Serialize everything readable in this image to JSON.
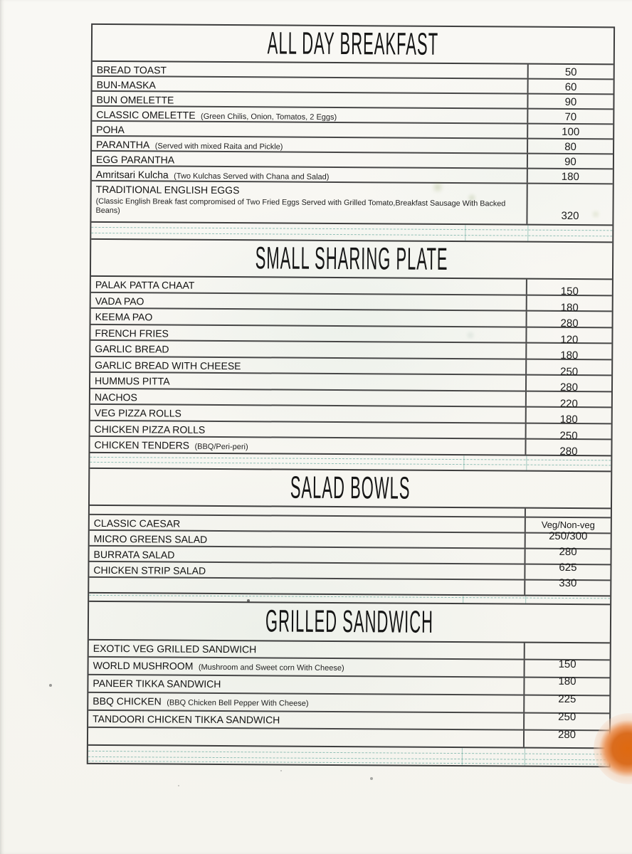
{
  "menu": {
    "sections": [
      {
        "title": "ALL DAY BREAKFAST",
        "items": [
          {
            "name": "BREAD TOAST",
            "price": "50"
          },
          {
            "name": "BUN-MASKA",
            "price": "60"
          },
          {
            "name": "BUN OMELETTE",
            "price": "90"
          },
          {
            "name": "CLASSIC OMELETTE",
            "desc": "(Green Chilis, Onion, Tomatos, 2 Eggs)",
            "price": "70"
          },
          {
            "name": "POHA",
            "price": "100"
          },
          {
            "name": "PARANTHA",
            "desc": "(Served with mixed Raita and Pickle)",
            "price": "80"
          },
          {
            "name": "EGG PARANTHA",
            "price": "90"
          },
          {
            "name": "Amritsari Kulcha",
            "desc": "(Two Kulchas Served with Chana and Salad)",
            "price": "180"
          },
          {
            "name": "TRADITIONAL ENGLISH EGGS",
            "desc_block": "(Classic English Break fast compromised of Two Fried Eggs Served with Grilled Tomato,Breakfast Sausage With Backed Beans)",
            "price": "320",
            "tall": true
          }
        ]
      },
      {
        "title": "SMALL SHARING PLATE",
        "items": [
          {
            "name": "PALAK PATTA CHAAT",
            "price": "150"
          },
          {
            "name": "VADA PAO",
            "price": "180"
          },
          {
            "name": "KEEMA PAO",
            "price": "280"
          },
          {
            "name": "FRENCH FRIES",
            "price": "120"
          },
          {
            "name": "GARLIC BREAD",
            "price": "180"
          },
          {
            "name": "GARLIC BREAD WITH CHEESE",
            "price": "250"
          },
          {
            "name": "HUMMUS PITTA",
            "price": "280"
          },
          {
            "name": "NACHOS",
            "price": "220"
          },
          {
            "name": "VEG PIZZA ROLLS",
            "price": "180"
          },
          {
            "name": "CHICKEN PIZZA ROLLS",
            "price": "250"
          },
          {
            "name": "CHICKEN TENDERS",
            "desc": "(BBQ/Peri-peri)",
            "price": "280"
          }
        ]
      },
      {
        "title": "SALAD BOWLS",
        "price_header": "Veg/Non-veg",
        "items": [
          {
            "name": "CLASSIC CAESAR",
            "price": "250/300"
          },
          {
            "name": "MICRO GREENS SALAD",
            "price": "280"
          },
          {
            "name": "BURRATA SALAD",
            "price": "625"
          },
          {
            "name": "CHICKEN STRIP SALAD",
            "price": "330"
          }
        ]
      },
      {
        "title": "GRILLED SANDWICH",
        "items": [
          {
            "name": "EXOTIC VEG GRILLED SANDWICH",
            "price": "150"
          },
          {
            "name": "WORLD MUSHROOM",
            "desc": "(Mushroom and Sweet corn With Cheese)",
            "price": "180"
          },
          {
            "name": "PANEER TIKKA SANDWICH",
            "price": "225"
          },
          {
            "name": "BBQ CHICKEN",
            "desc": "(BBQ Chicken Bell Pepper With Cheese)",
            "price": "250"
          },
          {
            "name": "TANDOORI CHICKEN TIKKA SANDWICH",
            "price": "280"
          }
        ]
      }
    ],
    "colors": {
      "paper": "#f7f6f1",
      "table_line": "#3e3e3e",
      "ink": "#1a1a1a",
      "teal_rule": "#3e9486",
      "sticker_orange": "#df690f"
    }
  }
}
